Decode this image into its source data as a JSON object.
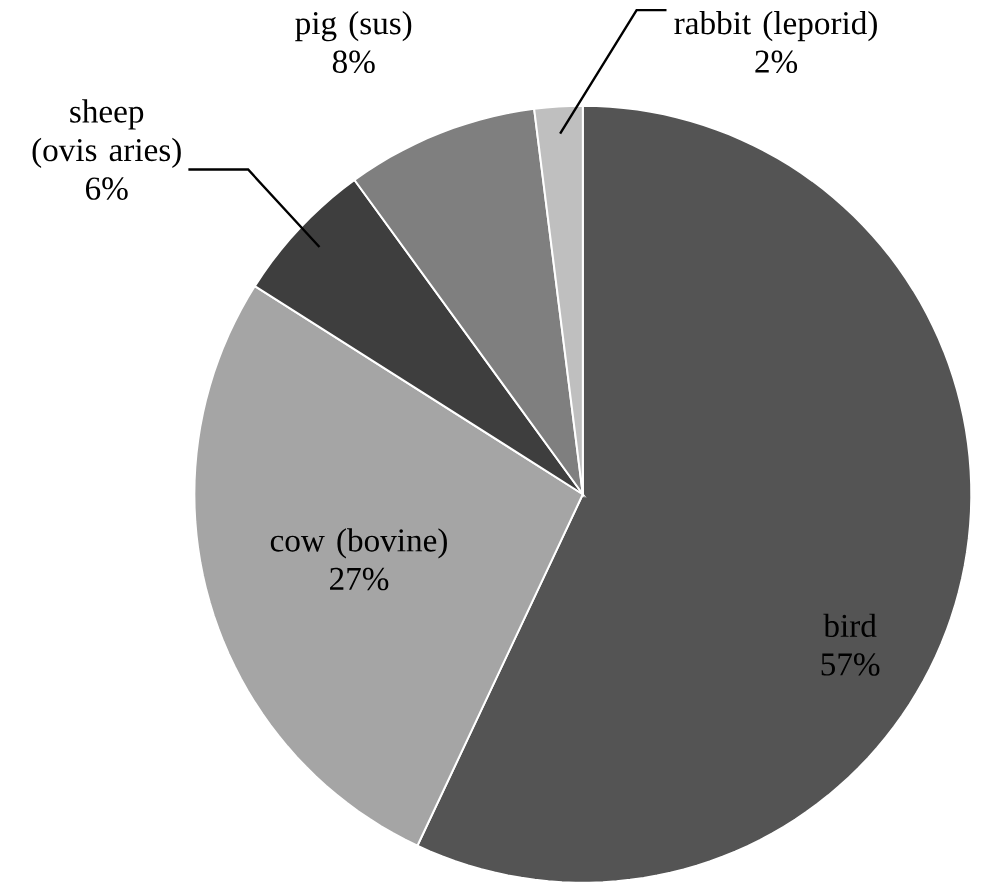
{
  "chart_data": {
    "type": "pie",
    "categories": [
      "bird",
      "cow (bovine)",
      "sheep (ovis aries)",
      "pig (sus)",
      "rabbit (leporid)"
    ],
    "values": [
      57,
      27,
      6,
      8,
      2
    ],
    "value_labels": [
      "57%",
      "27%",
      "6%",
      "8%",
      "2%"
    ],
    "colors": [
      "#545454",
      "#a5a5a5",
      "#3e3e3e",
      "#7f7f7f",
      "#bfbfbf"
    ]
  }
}
